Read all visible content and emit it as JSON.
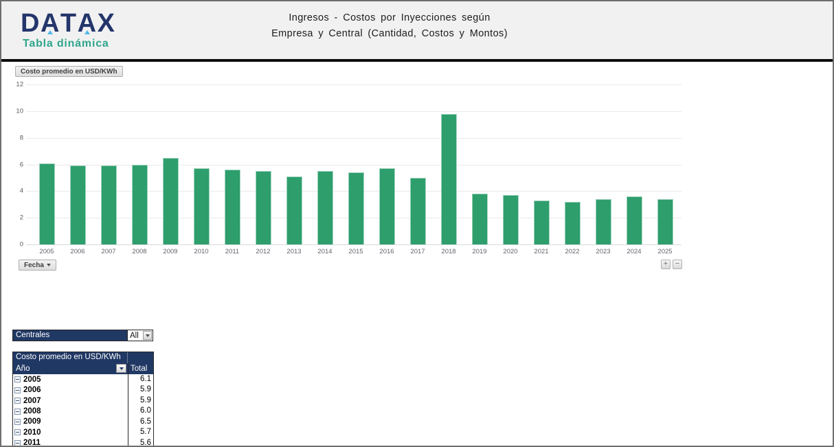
{
  "header": {
    "logo_text_parts": {
      "l1": "D",
      "a1": "A",
      "t": "T",
      "a2": "A",
      "x": "X"
    },
    "logo_subtitle": "Tabla dinámica",
    "title_line1": "Ingresos - Costos por Inyecciones según",
    "title_line2": "Empresa y Central  (Cantidad,  Costos y Montos)"
  },
  "chart_data": {
    "type": "bar",
    "title": "Costo promedio en USD/KWh",
    "categories": [
      "2005",
      "2006",
      "2007",
      "2008",
      "2009",
      "2010",
      "2011",
      "2012",
      "2013",
      "2014",
      "2015",
      "2016",
      "2017",
      "2018",
      "2019",
      "2020",
      "2021",
      "2022",
      "2023",
      "2024",
      "2025"
    ],
    "values": [
      6.1,
      5.9,
      5.9,
      6.0,
      6.5,
      5.7,
      5.6,
      5.5,
      5.1,
      5.5,
      5.4,
      5.7,
      5.0,
      9.8,
      3.8,
      3.7,
      3.3,
      3.2,
      3.4,
      3.6,
      3.4
    ],
    "ylim": [
      0,
      12
    ],
    "ytick_step": 2,
    "grid": true,
    "legend_position": "none",
    "bar_color": "#2E9E6D",
    "value_field_button": "Costo promedio en USD/KWh",
    "axis_field_button": "Fecha",
    "zoom_in_label": "+",
    "zoom_out_label": "−"
  },
  "slicer": {
    "label": "Centrales",
    "value": "All"
  },
  "pivot_table": {
    "value_header": "Costo promedio en USD/KWh",
    "row_header": "Año",
    "total_header": "Total",
    "rows": [
      {
        "year": "2005",
        "total": "6.1"
      },
      {
        "year": "2006",
        "total": "5.9"
      },
      {
        "year": "2007",
        "total": "5.9"
      },
      {
        "year": "2008",
        "total": "6.0"
      },
      {
        "year": "2009",
        "total": "6.5"
      },
      {
        "year": "2010",
        "total": "5.7"
      },
      {
        "year": "2011",
        "total": "5.6"
      }
    ]
  },
  "colors": {
    "navy": "#203864",
    "teal": "#2FA58C",
    "bar_green": "#2E9E6D",
    "header_bg": "#F1F1F1"
  }
}
